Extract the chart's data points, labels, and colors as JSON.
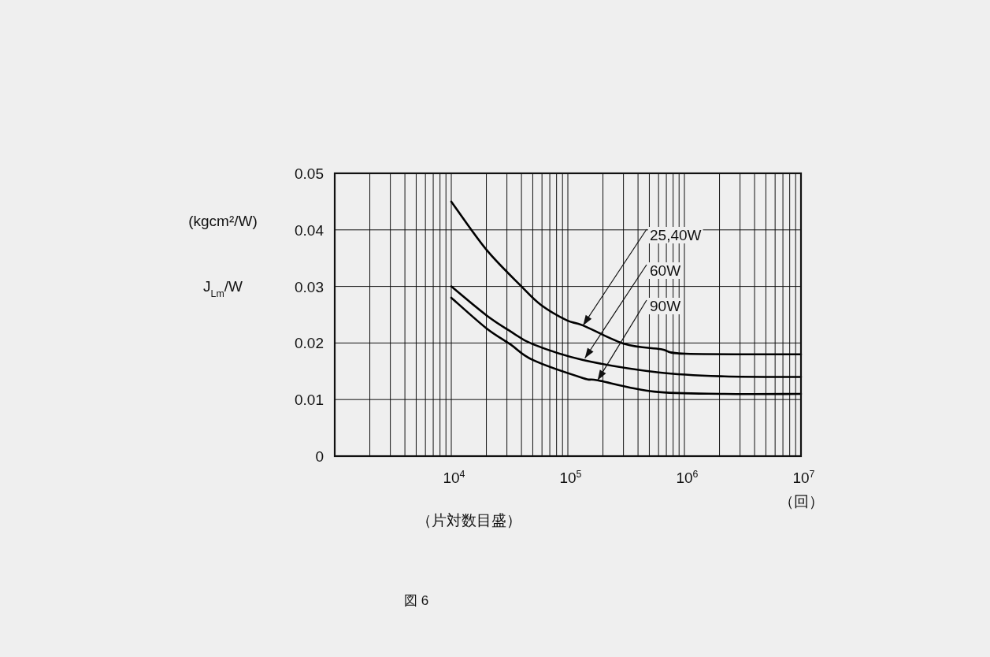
{
  "chart_data": {
    "type": "line",
    "xlabel": "（片対数目盛）",
    "ylabel": "J$_{Lm}$/W",
    "log": "x",
    "grid": true,
    "marker": "none",
    "line_style": "solid",
    "xlim": [
      1000,
      10000000
    ],
    "xticks": [
      {
        "value": 10000,
        "label": "10$^{4}$"
      },
      {
        "value": 100000,
        "label": "10$^{5}$"
      },
      {
        "value": 1000000,
        "label": "10$^{6}$"
      },
      {
        "value": 10000000,
        "label": "10$^{7}$"
      }
    ],
    "ylim": [
      0,
      0.05
    ],
    "yticks": [
      0,
      0.01,
      0.02,
      0.03,
      0.04,
      0.05
    ],
    "series": [
      {
        "color": "#000000",
        "x": [
          10000,
          20000,
          40000,
          59000,
          98000,
          135000,
          310000,
          630000,
          1020000,
          10000000
        ],
        "values": [
          0.045,
          0.0365,
          0.03,
          0.0267,
          0.024,
          0.0231,
          0.0198,
          0.0189,
          0.0181,
          0.018
        ]
      },
      {
        "color": "#000000",
        "x": [
          10000,
          20000,
          32000,
          50000,
          135000,
          600000,
          2200000,
          10000000
        ],
        "values": [
          0.03,
          0.0249,
          0.0221,
          0.0198,
          0.017,
          0.0148,
          0.0141,
          0.014
        ]
      },
      {
        "color": "#000000",
        "x": [
          10000,
          20000,
          32000,
          50000,
          135000,
          180000,
          550000,
          2200000,
          10000000
        ],
        "values": [
          0.028,
          0.0226,
          0.0198,
          0.017,
          0.0138,
          0.0134,
          0.0114,
          0.011,
          0.011
        ]
      }
    ],
    "annotations": [
      "（回）",
      "(kgcm²/W)",
      "図 6",
      {
        "text": "25,40W",
        "x": 135000,
        "y": 0.0231
      },
      {
        "text": "60W",
        "x": 140000,
        "y": 0.0173
      },
      {
        "text": "90W",
        "x": 180000,
        "y": 0.0134
      }
    ]
  }
}
